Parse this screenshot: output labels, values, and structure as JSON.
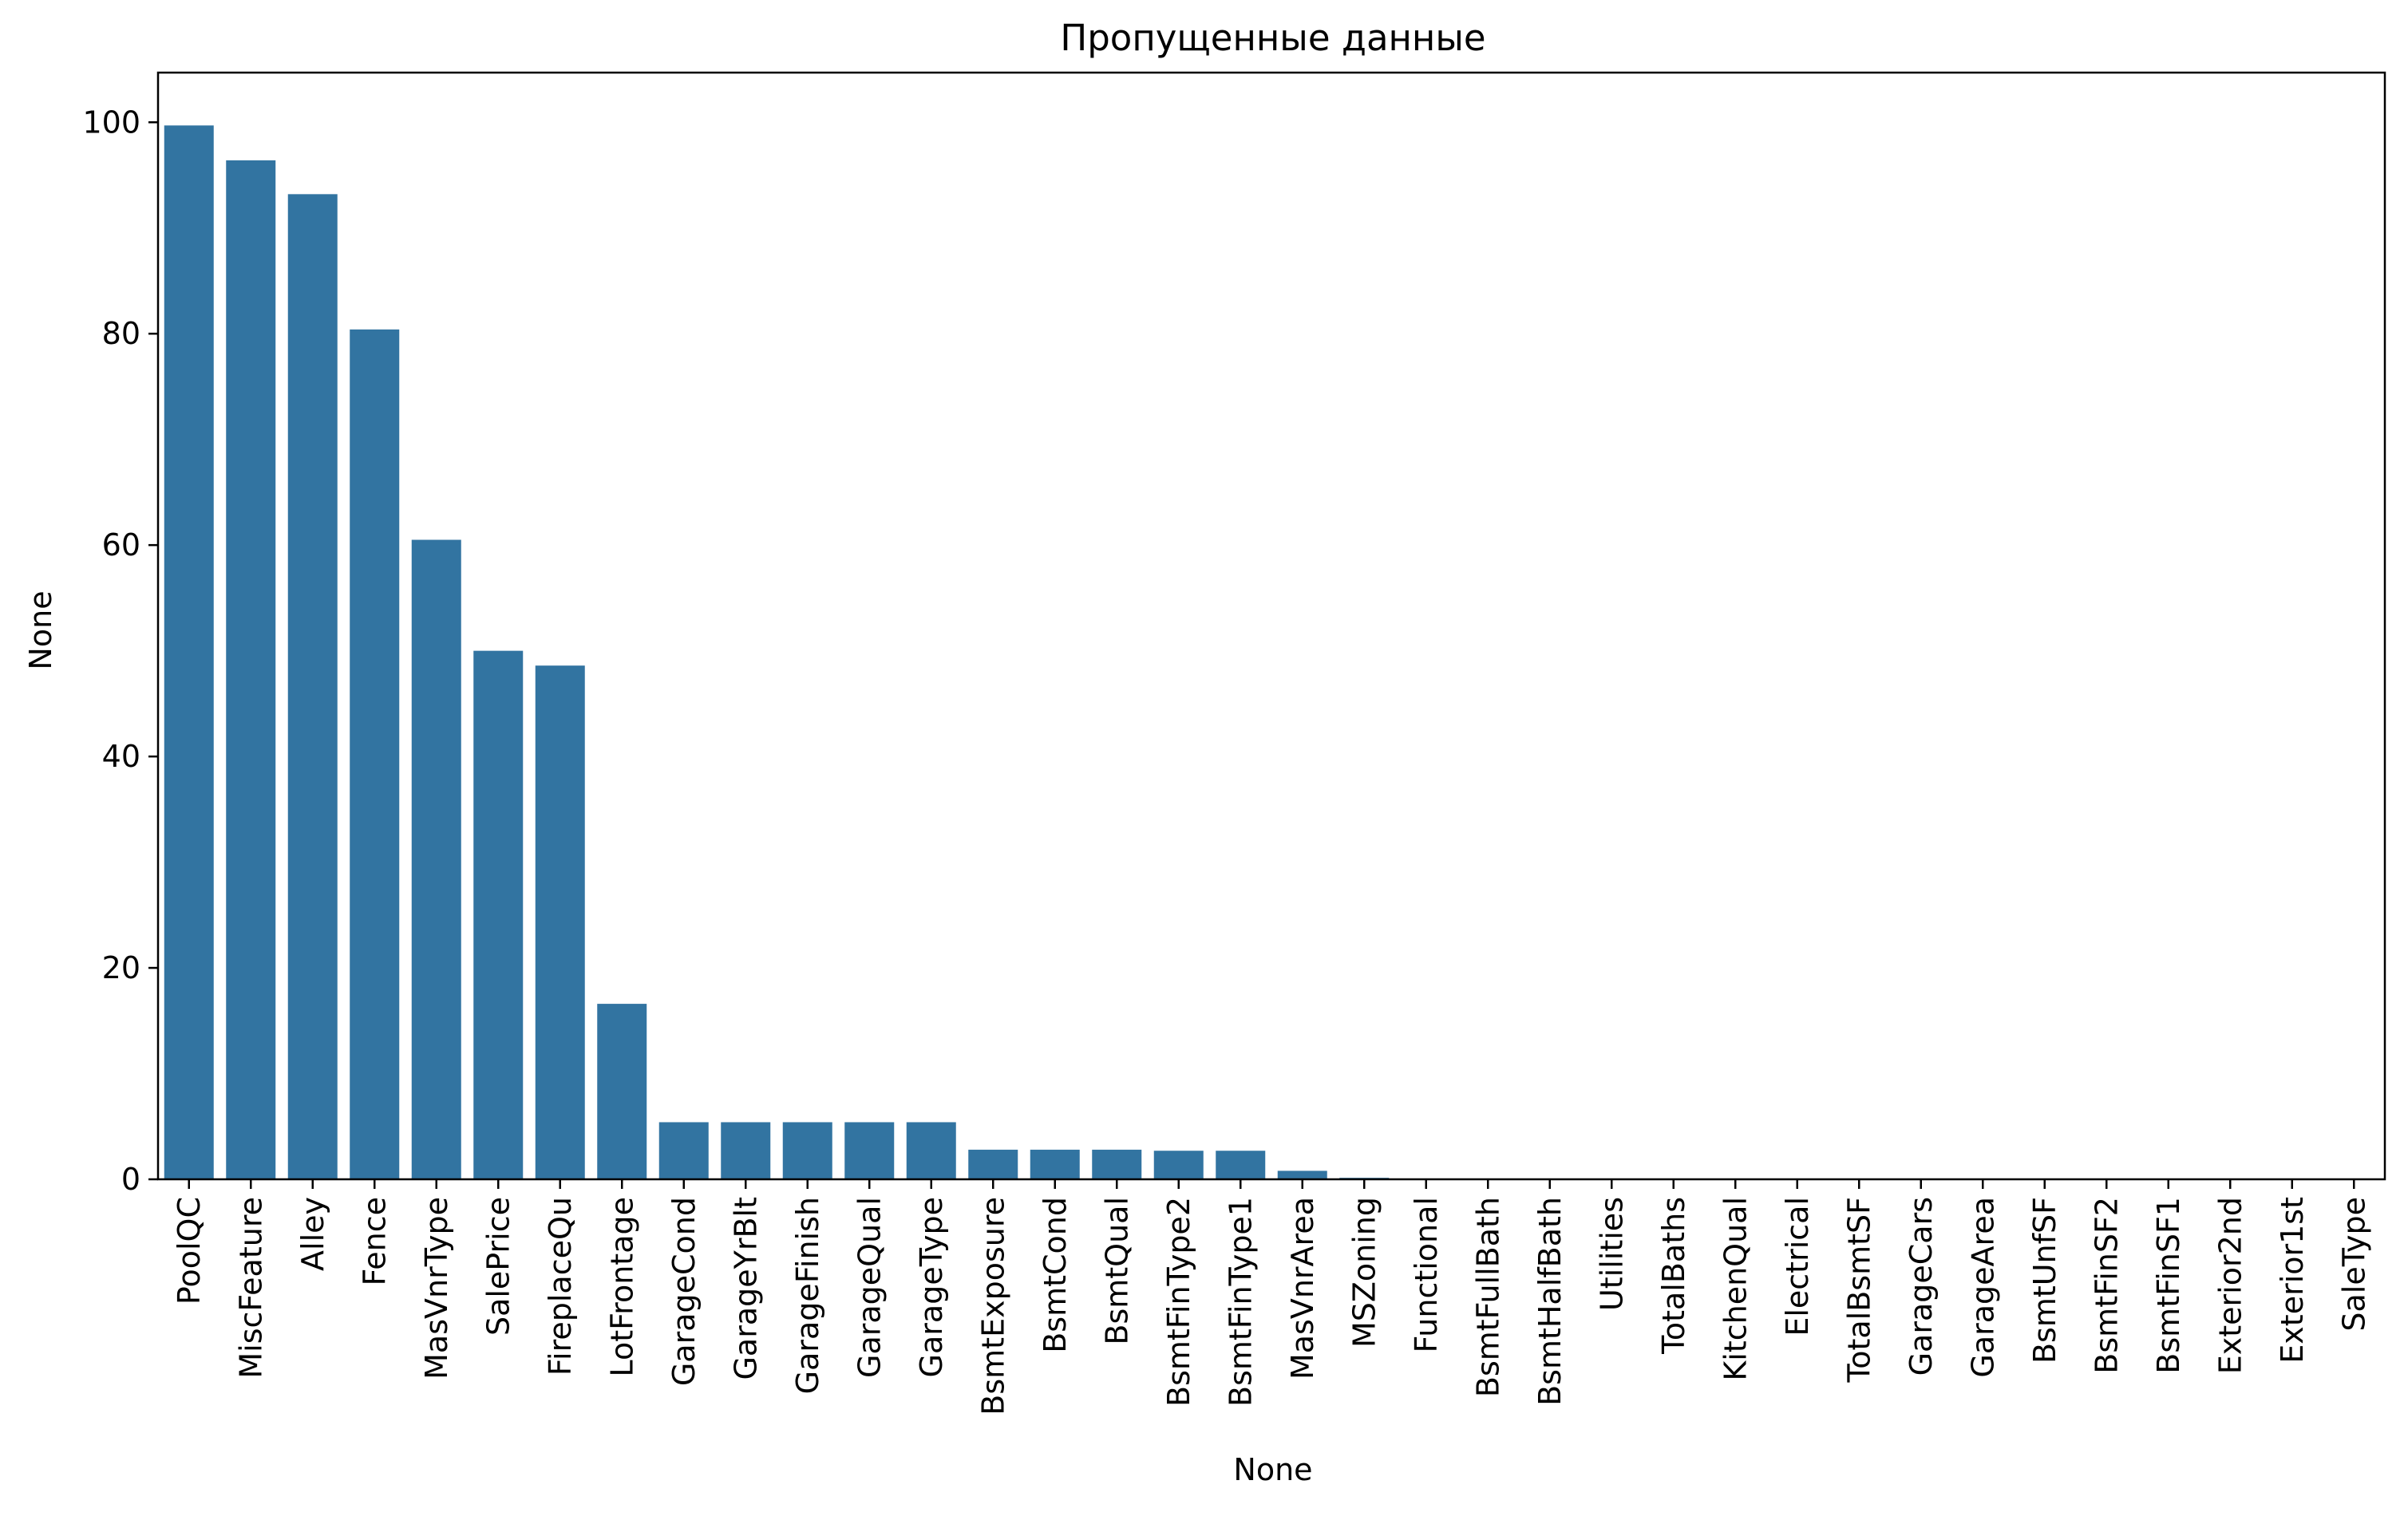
{
  "chart_data": {
    "type": "bar",
    "title": "Пропущенные данные",
    "xlabel": "None",
    "ylabel": "None",
    "categories": [
      "PoolQC",
      "MiscFeature",
      "Alley",
      "Fence",
      "MasVnrType",
      "SalePrice",
      "FireplaceQu",
      "LotFrontage",
      "GarageCond",
      "GarageYrBlt",
      "GarageFinish",
      "GarageQual",
      "GarageType",
      "BsmtExposure",
      "BsmtCond",
      "BsmtQual",
      "BsmtFinType2",
      "BsmtFinType1",
      "MasVnrArea",
      "MSZoning",
      "Functional",
      "BsmtFullBath",
      "BsmtHalfBath",
      "Utilities",
      "TotalBaths",
      "KitchenQual",
      "Electrical",
      "TotalBsmtSF",
      "GarageCars",
      "GarageArea",
      "BsmtUnfSF",
      "BsmtFinSF2",
      "BsmtFinSF1",
      "Exterior2nd",
      "Exterior1st",
      "SaleType"
    ],
    "values": [
      99.7,
      96.4,
      93.2,
      80.4,
      60.5,
      50.0,
      48.6,
      16.6,
      5.4,
      5.4,
      5.4,
      5.4,
      5.4,
      2.8,
      2.8,
      2.8,
      2.7,
      2.7,
      0.8,
      0.14,
      0.07,
      0.07,
      0.07,
      0.07,
      0.07,
      0.03,
      0.03,
      0.03,
      0.03,
      0.03,
      0.03,
      0.03,
      0.03,
      0.03,
      0.03,
      0.03
    ],
    "ylim": [
      0,
      104.7
    ],
    "yticks": [
      0,
      20,
      40,
      60,
      80,
      100
    ],
    "grid": false,
    "legend": "none",
    "bar_color": "#3274a1"
  }
}
